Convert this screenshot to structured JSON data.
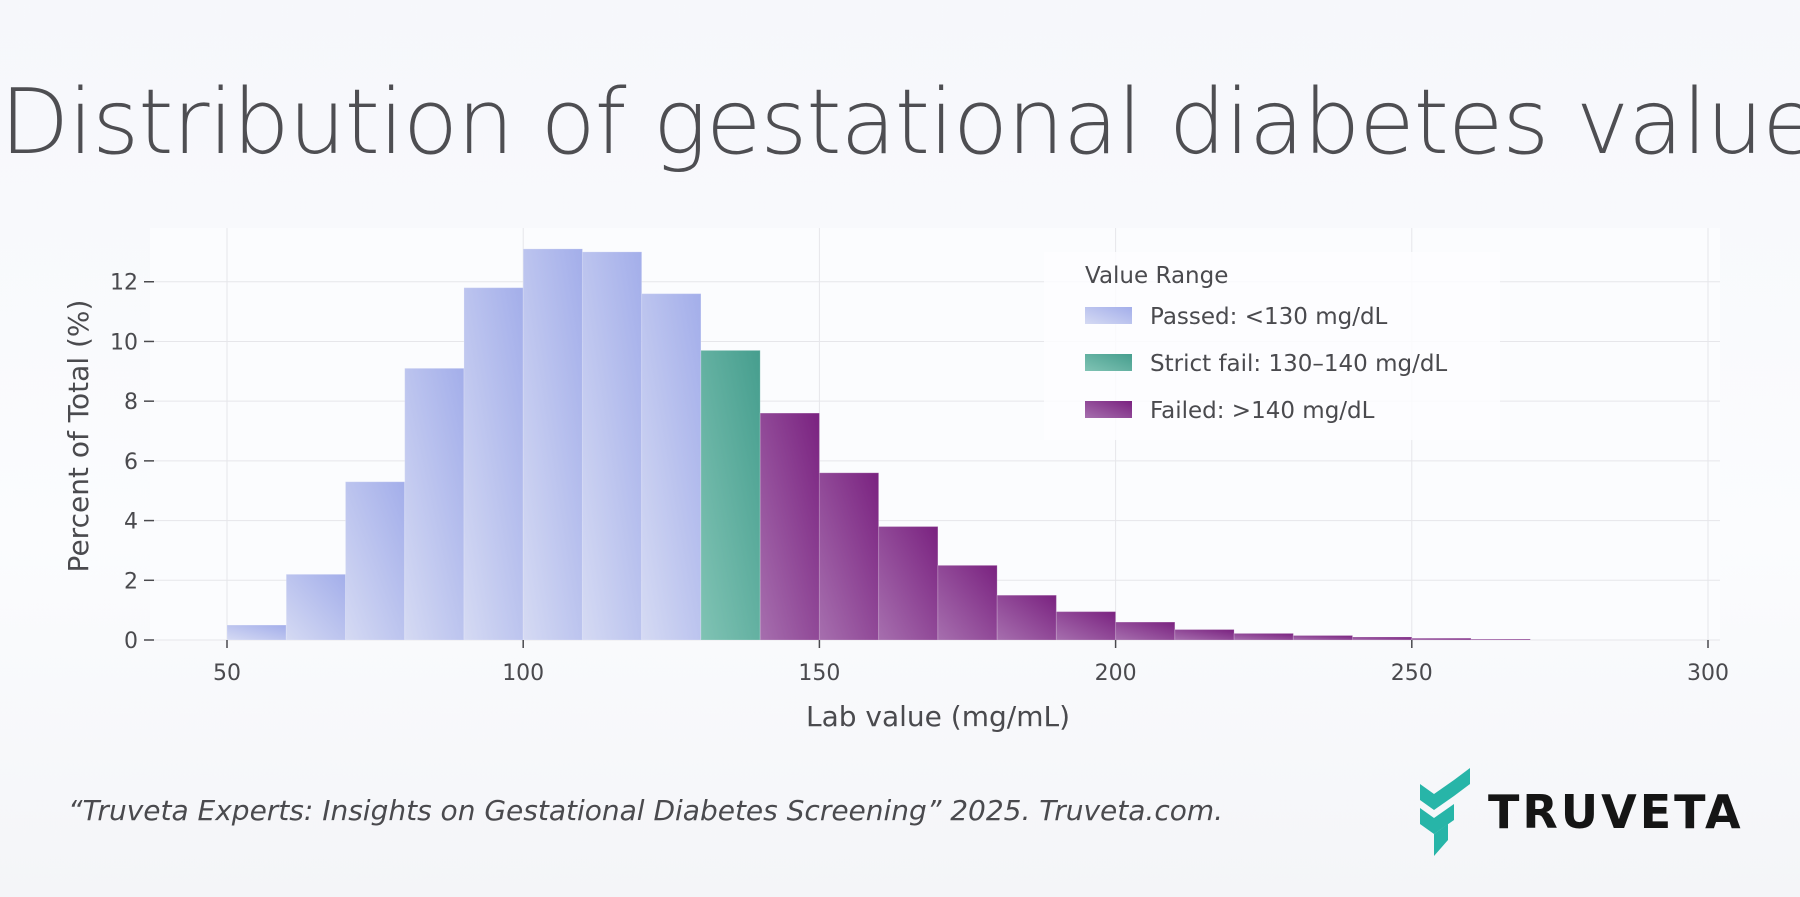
{
  "title": "Distribution of gestational diabetes values",
  "caption": "“Truveta Experts: Insights on Gestational Diabetes Screening” 2025. Truveta.com.",
  "brand": {
    "name": "TRUVETA",
    "logo_icon": "truveta-chevron-icon",
    "logo_color": "#27b5a8"
  },
  "colors": {
    "passed": "#a6b1ea",
    "strict": "#4fa696",
    "failed": "#7c2583",
    "text": "#4a4a4e",
    "grid": "#e6e6ea"
  },
  "chart_data": {
    "type": "bar",
    "title": "Distribution of gestational diabetes values",
    "xlabel": "Lab value (mg/mL)",
    "ylabel": "Percent of Total (%)",
    "xlim": [
      50,
      300
    ],
    "ylim": [
      0,
      13.8
    ],
    "xticks": [
      50,
      100,
      150,
      200,
      250,
      300
    ],
    "yticks": [
      0,
      2,
      4,
      6,
      8,
      10,
      12
    ],
    "grid": true,
    "bin_width": 10,
    "legend": {
      "title": "Value Range",
      "position": "top-right",
      "entries": [
        {
          "key": "passed",
          "label": "Passed: <130 mg/dL"
        },
        {
          "key": "strict",
          "label": "Strict fail: 130–140 mg/dL"
        },
        {
          "key": "failed",
          "label": "Failed: >140 mg/dL"
        }
      ]
    },
    "bins": [
      {
        "start": 50,
        "value": 0.5,
        "group": "passed"
      },
      {
        "start": 60,
        "value": 2.2,
        "group": "passed"
      },
      {
        "start": 70,
        "value": 5.3,
        "group": "passed"
      },
      {
        "start": 80,
        "value": 9.1,
        "group": "passed"
      },
      {
        "start": 90,
        "value": 11.8,
        "group": "passed"
      },
      {
        "start": 100,
        "value": 13.1,
        "group": "passed"
      },
      {
        "start": 110,
        "value": 13.0,
        "group": "passed"
      },
      {
        "start": 120,
        "value": 11.6,
        "group": "passed"
      },
      {
        "start": 130,
        "value": 9.7,
        "group": "strict"
      },
      {
        "start": 140,
        "value": 7.6,
        "group": "failed"
      },
      {
        "start": 150,
        "value": 5.6,
        "group": "failed"
      },
      {
        "start": 160,
        "value": 3.8,
        "group": "failed"
      },
      {
        "start": 170,
        "value": 2.5,
        "group": "failed"
      },
      {
        "start": 180,
        "value": 1.5,
        "group": "failed"
      },
      {
        "start": 190,
        "value": 0.95,
        "group": "failed"
      },
      {
        "start": 200,
        "value": 0.6,
        "group": "failed"
      },
      {
        "start": 210,
        "value": 0.35,
        "group": "failed"
      },
      {
        "start": 220,
        "value": 0.22,
        "group": "failed"
      },
      {
        "start": 230,
        "value": 0.15,
        "group": "failed"
      },
      {
        "start": 240,
        "value": 0.1,
        "group": "failed"
      },
      {
        "start": 250,
        "value": 0.06,
        "group": "failed"
      },
      {
        "start": 260,
        "value": 0.03,
        "group": "failed"
      }
    ]
  }
}
